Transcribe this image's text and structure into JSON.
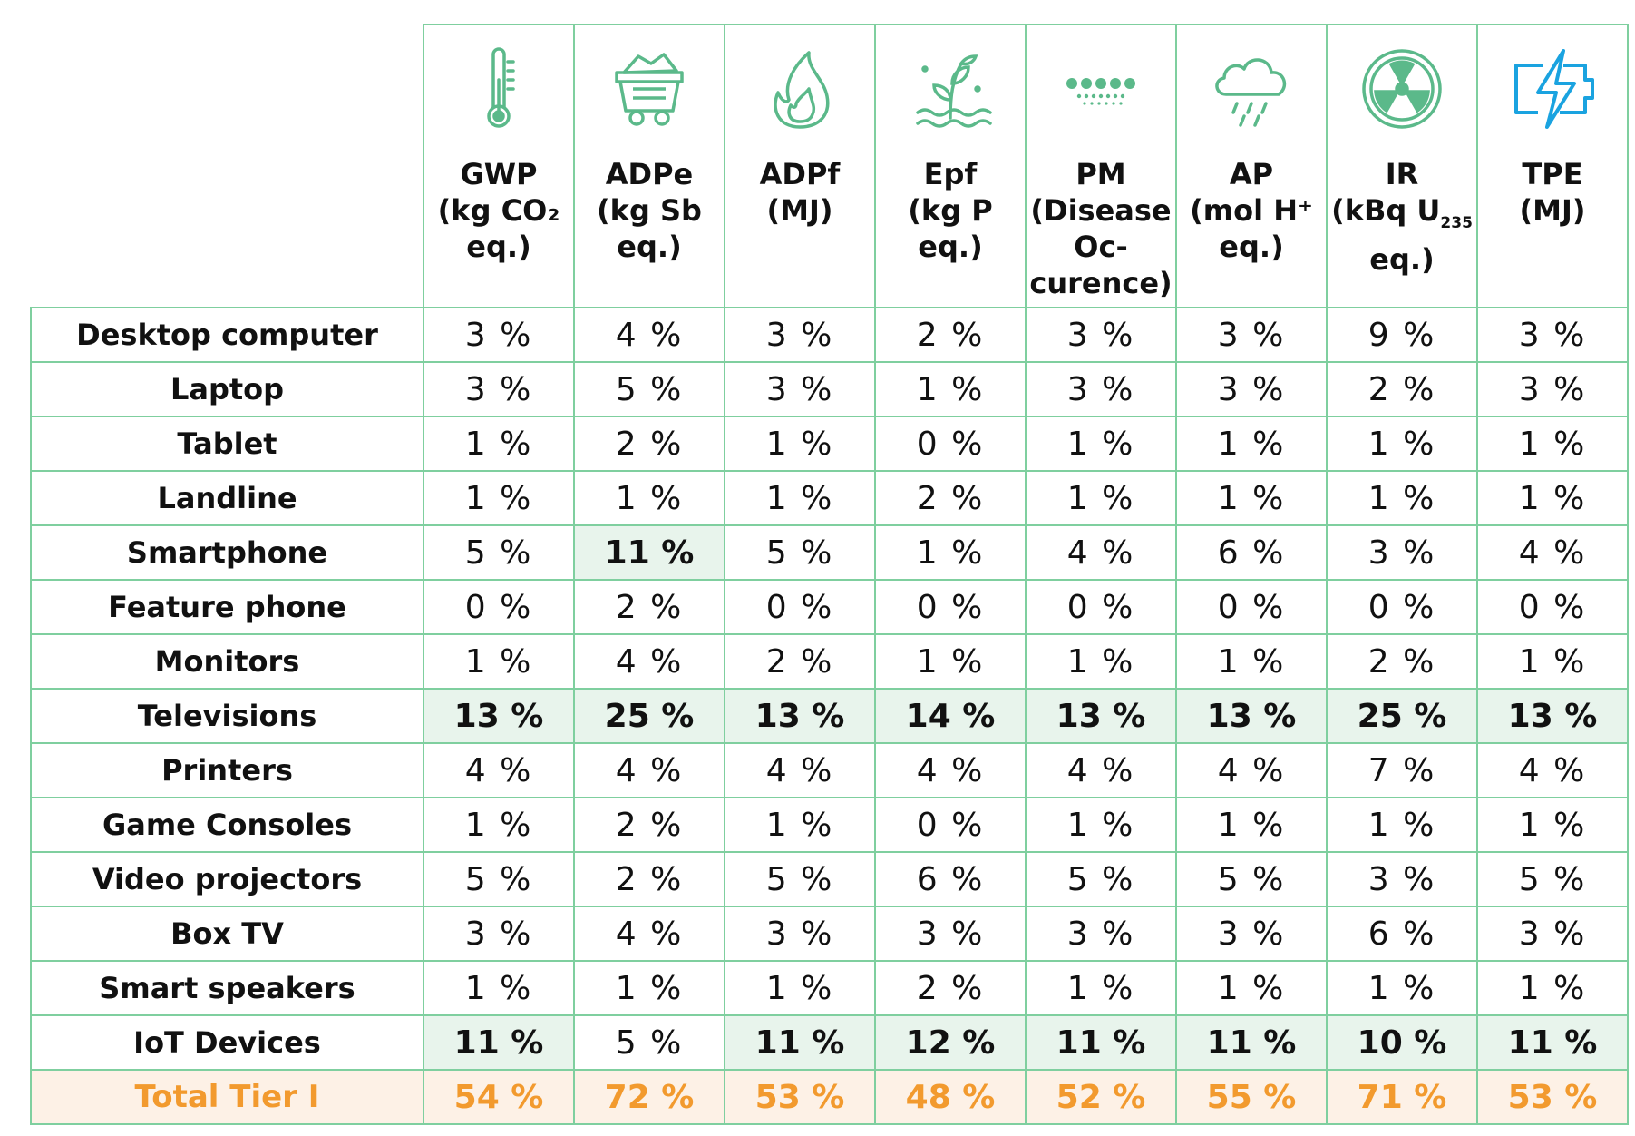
{
  "colors": {
    "border": "#7fcf9f",
    "icon": "#5bb98a",
    "highlight": "#e8f4ec",
    "total_bg": "#fdf1e6",
    "total_text": "#f29a2e",
    "tpe_icon": "#1aa3e0"
  },
  "columns": [
    {
      "icon": "thermometer-icon",
      "title_lines": [
        "GWP",
        "(kg CO₂",
        "eq.)"
      ]
    },
    {
      "icon": "mine-cart-icon",
      "title_lines": [
        "ADPe",
        "(kg Sb eq.)"
      ]
    },
    {
      "icon": "flame-icon",
      "title_lines": [
        "ADPf",
        "(MJ)"
      ]
    },
    {
      "icon": "plant-water-icon",
      "title_lines": [
        "Epf",
        "(kg P eq.)"
      ]
    },
    {
      "icon": "particles-icon",
      "title_lines": [
        "PM",
        "(Disease",
        "Oc-",
        "curence)"
      ]
    },
    {
      "icon": "acid-rain-icon",
      "title_lines": [
        "AP",
        "(mol H⁺",
        "eq.)"
      ]
    },
    {
      "icon": "radiation-icon",
      "title_lines": [
        "IR",
        "(kBq U",
        "eq.)"
      ],
      "subscript": "235"
    },
    {
      "icon": "battery-bolt-icon",
      "title_lines": [
        "TPE",
        "(MJ)"
      ]
    }
  ],
  "rows": [
    {
      "label": "Desktop computer",
      "values": [
        "3 %",
        "4 %",
        "3 %",
        "2 %",
        "3 %",
        "3 %",
        "9 %",
        "3 %"
      ],
      "highlight": []
    },
    {
      "label": "Laptop",
      "values": [
        "3 %",
        "5 %",
        "3 %",
        "1 %",
        "3 %",
        "3 %",
        "2 %",
        "3 %"
      ],
      "highlight": []
    },
    {
      "label": "Tablet",
      "values": [
        "1 %",
        "2 %",
        "1 %",
        "0 %",
        "1 %",
        "1 %",
        "1 %",
        "1 %"
      ],
      "highlight": []
    },
    {
      "label": "Landline",
      "values": [
        "1 %",
        "1 %",
        "1 %",
        "2 %",
        "1 %",
        "1 %",
        "1 %",
        "1 %"
      ],
      "highlight": []
    },
    {
      "label": "Smartphone",
      "values": [
        "5 %",
        "11 %",
        "5 %",
        "1 %",
        "4 %",
        "6 %",
        "3 %",
        "4 %"
      ],
      "highlight": [
        1
      ]
    },
    {
      "label": "Feature phone",
      "values": [
        "0 %",
        "2 %",
        "0 %",
        "0 %",
        "0 %",
        "0 %",
        "0 %",
        "0 %"
      ],
      "highlight": []
    },
    {
      "label": "Monitors",
      "values": [
        "1 %",
        "4 %",
        "2 %",
        "1 %",
        "1 %",
        "1 %",
        "2 %",
        "1 %"
      ],
      "highlight": []
    },
    {
      "label": "Televisions",
      "values": [
        "13 %",
        "25 %",
        "13 %",
        "14 %",
        "13 %",
        "13 %",
        "25 %",
        "13 %"
      ],
      "highlight": [
        0,
        1,
        2,
        3,
        4,
        5,
        6,
        7
      ]
    },
    {
      "label": "Printers",
      "values": [
        "4 %",
        "4 %",
        "4 %",
        "4 %",
        "4 %",
        "4 %",
        "7 %",
        "4 %"
      ],
      "highlight": []
    },
    {
      "label": "Game Consoles",
      "values": [
        "1 %",
        "2 %",
        "1 %",
        "0 %",
        "1 %",
        "1 %",
        "1 %",
        "1 %"
      ],
      "highlight": []
    },
    {
      "label": "Video projectors",
      "values": [
        "5 %",
        "2 %",
        "5 %",
        "6 %",
        "5 %",
        "5 %",
        "3 %",
        "5 %"
      ],
      "highlight": []
    },
    {
      "label": "Box TV",
      "values": [
        "3 %",
        "4 %",
        "3 %",
        "3 %",
        "3 %",
        "3 %",
        "6 %",
        "3 %"
      ],
      "highlight": []
    },
    {
      "label": "Smart speakers",
      "values": [
        "1 %",
        "1 %",
        "1 %",
        "2 %",
        "1 %",
        "1 %",
        "1 %",
        "1 %"
      ],
      "highlight": []
    },
    {
      "label": "IoT Devices",
      "values": [
        "11 %",
        "5 %",
        "11 %",
        "12 %",
        "11 %",
        "11 %",
        "10 %",
        "11 %"
      ],
      "highlight": [
        0,
        2,
        3,
        4,
        5,
        6,
        7
      ]
    }
  ],
  "total": {
    "label": "Total Tier I",
    "values": [
      "54 %",
      "72 %",
      "53 %",
      "48 %",
      "52 %",
      "55 %",
      "71 %",
      "53 %"
    ]
  }
}
